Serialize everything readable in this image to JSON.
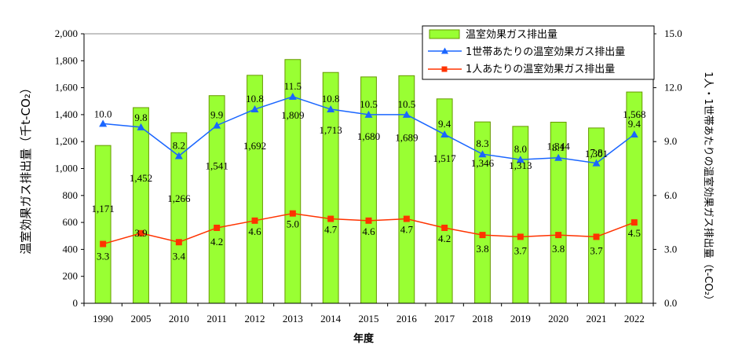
{
  "chart_data": {
    "type": "bar",
    "categories": [
      "1990",
      "2005",
      "2010",
      "2011",
      "2012",
      "2013",
      "2014",
      "2015",
      "2016",
      "2017",
      "2018",
      "2019",
      "2020",
      "2021",
      "2022"
    ],
    "xlabel": "年度",
    "ylabel_left": "温室効果ガス排出量（千t-CO₂）",
    "ylabel_right": "1人・1世帯あたりの温室効果ガス排出量（t-CO₂）",
    "ylim_left": [
      0,
      2000
    ],
    "ylim_right": [
      0.0,
      15.0
    ],
    "yticks_left": [
      "0",
      "200",
      "400",
      "600",
      "800",
      "1,000",
      "1,200",
      "1,400",
      "1,600",
      "1,800",
      "2,000"
    ],
    "yticks_right": [
      "0.0",
      "3.0",
      "6.0",
      "9.0",
      "12.0",
      "15.0"
    ],
    "legend_position": "top-right",
    "grid": false,
    "series": [
      {
        "name": "温室効果ガス排出量",
        "kind": "bar",
        "axis": "left",
        "color": "#99ff33",
        "edge": "#669900",
        "values": [
          1171,
          1452,
          1266,
          1541,
          1692,
          1809,
          1713,
          1680,
          1689,
          1517,
          1346,
          1313,
          1344,
          1301,
          1568
        ],
        "labels": [
          "1,171",
          "1,452",
          "1,266",
          "1,541",
          "1,692",
          "1,809",
          "1,713",
          "1,680",
          "1,689",
          "1,517",
          "1,346",
          "1,313",
          "1,344",
          "1,301",
          "1,568"
        ]
      },
      {
        "name": "1世帯あたりの温室効果ガス排出量",
        "kind": "line",
        "axis": "right",
        "marker": "triangle",
        "color": "#1a66ff",
        "values": [
          10.0,
          9.8,
          8.2,
          9.9,
          10.8,
          11.5,
          10.8,
          10.5,
          10.5,
          9.4,
          8.3,
          8.0,
          8.1,
          7.8,
          9.4
        ],
        "labels": [
          "10.0",
          "9.8",
          "8.2",
          "9.9",
          "10.8",
          "11.5",
          "10.8",
          "10.5",
          "10.5",
          "9.4",
          "8.3",
          "8.0",
          "8.1",
          "7.8",
          "9.4"
        ]
      },
      {
        "name": "1人あたりの温室効果ガス排出量",
        "kind": "line",
        "axis": "right",
        "marker": "square",
        "color": "#ff3300",
        "values": [
          3.3,
          3.9,
          3.4,
          4.2,
          4.6,
          5.0,
          4.7,
          4.6,
          4.7,
          4.2,
          3.8,
          3.7,
          3.8,
          3.7,
          4.5
        ],
        "labels": [
          "3.3",
          "3.9",
          "3.4",
          "4.2",
          "4.6",
          "5.0",
          "4.7",
          "4.6",
          "4.7",
          "4.2",
          "3.8",
          "3.7",
          "3.8",
          "3.7",
          "4.5"
        ]
      }
    ]
  }
}
